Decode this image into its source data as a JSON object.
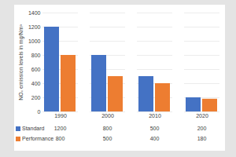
{
  "chart_data": {
    "type": "bar",
    "categories": [
      "1990",
      "2000",
      "2010",
      "2020"
    ],
    "series": [
      {
        "name": "Standard",
        "color": "#4472c4",
        "values": [
          1200,
          800,
          500,
          200
        ]
      },
      {
        "name": "Performance",
        "color": "#ed7d31",
        "values": [
          800,
          500,
          400,
          180
        ]
      }
    ],
    "ylabel": "NOₓ emission levels in mg/Nm³",
    "ylim": [
      0,
      1400
    ],
    "yticks": [
      0,
      200,
      400,
      600,
      800,
      1000,
      1200,
      1400
    ],
    "grid": true,
    "legend": "bottom"
  }
}
